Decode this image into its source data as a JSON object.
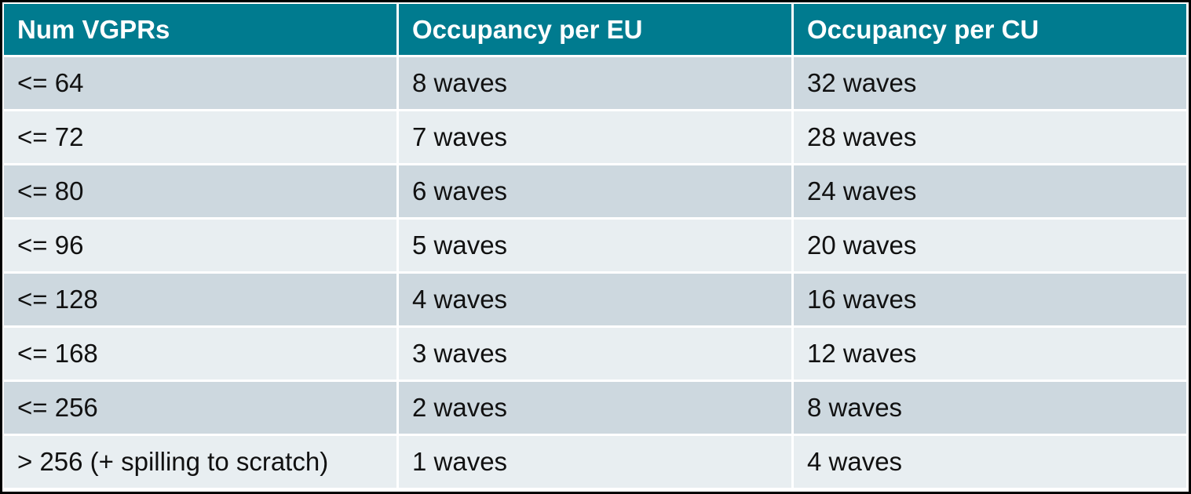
{
  "table": {
    "header": [
      "Num VGPRs",
      "Occupancy per EU",
      "Occupancy per CU"
    ],
    "rows": [
      [
        "<= 64",
        "8 waves",
        "32 waves"
      ],
      [
        "<= 72",
        "7 waves",
        "28 waves"
      ],
      [
        "<= 80",
        "6 waves",
        "24 waves"
      ],
      [
        "<= 96",
        "5 waves",
        "20 waves"
      ],
      [
        "<= 128",
        "4 waves",
        "16 waves"
      ],
      [
        "<= 168",
        "3 waves",
        "12 waves"
      ],
      [
        "<= 256",
        "2 waves",
        "8 waves"
      ],
      [
        "> 256 (+ spilling to scratch)",
        "1 waves",
        "4 waves"
      ]
    ]
  }
}
